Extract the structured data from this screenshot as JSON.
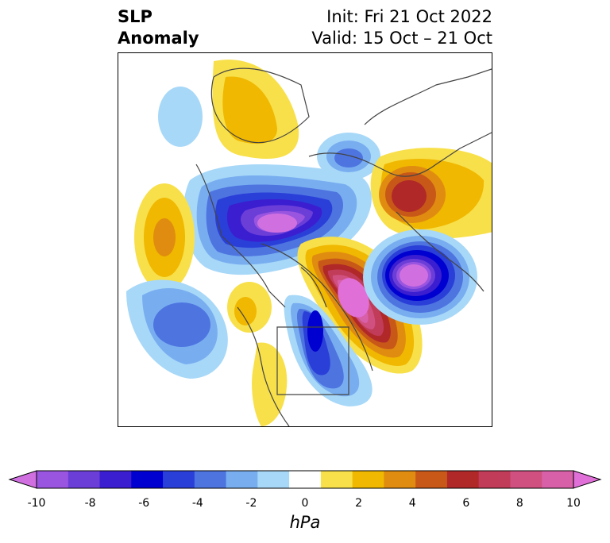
{
  "title": {
    "left_line1": "SLP",
    "left_line2": "Anomaly",
    "right_line1": "Init: Fri 21 Oct 2022",
    "right_line2": "Valid: 15 Oct – 21 Oct"
  },
  "colorbar": {
    "label": "hPa",
    "ticks": [
      "-10",
      "-8",
      "-6",
      "-4",
      "-2",
      "0",
      "2",
      "4",
      "6",
      "8",
      "10"
    ],
    "colors": [
      "#d070e0",
      "#9a55e0",
      "#6c3ed8",
      "#3a1ed0",
      "#0000d0",
      "#2a3fd8",
      "#4e74e0",
      "#78aef0",
      "#a8d8f8",
      "#ffffff",
      "#f8e04a",
      "#f0b800",
      "#e08c10",
      "#c85818",
      "#b02828",
      "#c03c58",
      "#d05080",
      "#d860a8",
      "#e070d8"
    ]
  },
  "map": {
    "features": [
      {
        "name": "slp-anomaly-low-north-pacific",
        "sign": "negative"
      },
      {
        "name": "slp-anomaly-high-arctic-greenland",
        "sign": "positive"
      },
      {
        "name": "slp-anomaly-low-western-europe",
        "sign": "negative"
      },
      {
        "name": "slp-anomaly-high-siberia",
        "sign": "positive"
      },
      {
        "name": "slp-anomaly-low-eastern-north-america",
        "sign": "negative"
      },
      {
        "name": "slp-anomaly-high-north-atlantic",
        "sign": "positive"
      }
    ]
  }
}
